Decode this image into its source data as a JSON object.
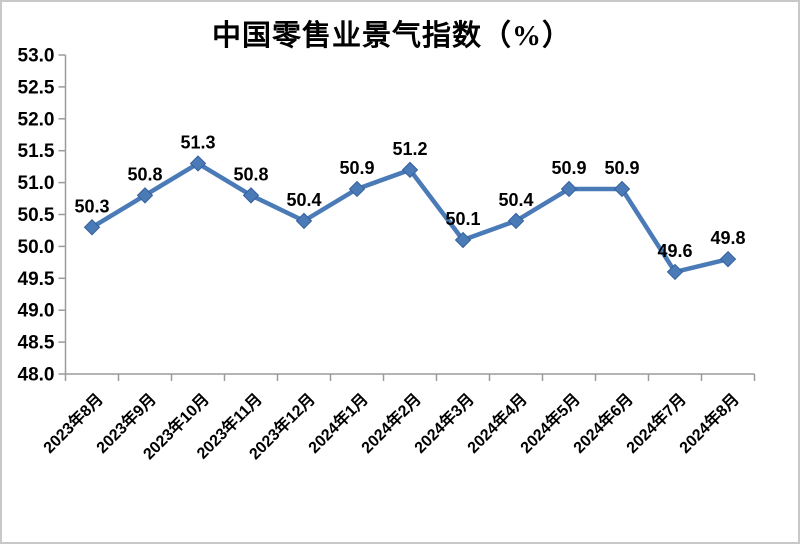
{
  "chart_data": {
    "type": "line",
    "title": "中国零售业景气指数（%）",
    "categories": [
      "2023年8月",
      "2023年9月",
      "2023年10月",
      "2023年11月",
      "2023年12月",
      "2024年1月",
      "2024年2月",
      "2024年3月",
      "2024年4月",
      "2024年5月",
      "2024年6月",
      "2024年7月",
      "2024年8月"
    ],
    "values": [
      50.3,
      50.8,
      51.3,
      50.8,
      50.4,
      50.9,
      51.2,
      50.1,
      50.4,
      50.9,
      50.9,
      49.6,
      49.8
    ],
    "data_labels": [
      "50.3",
      "50.8",
      "51.3",
      "50.8",
      "50.4",
      "50.9",
      "51.2",
      "50.1",
      "50.4",
      "50.9",
      "50.9",
      "49.6",
      "49.8"
    ],
    "xlabel": "",
    "ylabel": "",
    "ylim": [
      48.0,
      53.0
    ],
    "ytick_step": 0.5,
    "ytick_labels": [
      "48.0",
      "48.5",
      "49.0",
      "49.5",
      "50.0",
      "50.5",
      "51.0",
      "51.5",
      "52.0",
      "52.5",
      "53.0"
    ],
    "grid": false,
    "legend": "none",
    "marker": "diamond",
    "colors": {
      "line": "#4a7bb7",
      "marker": "#4a7bb7",
      "marker_edge": "#36609e",
      "axis": "#9b9b9b",
      "text": "#000000",
      "background": "#ffffff",
      "frame_border": "#c8c8c8"
    }
  }
}
